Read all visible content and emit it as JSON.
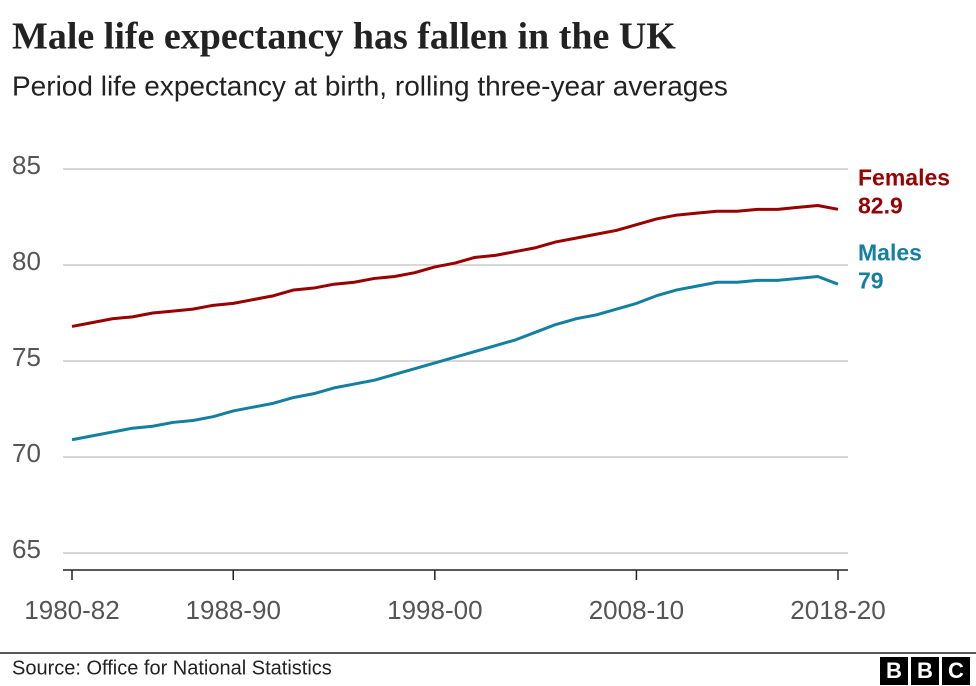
{
  "chart_data": {
    "type": "line",
    "title": "Male life expectancy has fallen in the UK",
    "subtitle": "Period life expectancy at birth, rolling three-year averages",
    "categories": [
      "1980-82",
      null,
      null,
      null,
      null,
      null,
      null,
      null,
      "1988-90",
      null,
      null,
      null,
      null,
      null,
      null,
      null,
      null,
      null,
      "1998-00",
      null,
      null,
      null,
      null,
      null,
      null,
      null,
      null,
      null,
      "2008-10",
      null,
      null,
      null,
      null,
      null,
      null,
      null,
      null,
      null,
      "2018-20"
    ],
    "series": [
      {
        "name": "Females",
        "color": "#990000",
        "values": [
          76.8,
          77.0,
          77.2,
          77.3,
          77.5,
          77.6,
          77.7,
          77.9,
          78.0,
          78.2,
          78.4,
          78.7,
          78.8,
          79.0,
          79.1,
          79.3,
          79.4,
          79.6,
          79.9,
          80.1,
          80.4,
          80.5,
          80.7,
          80.9,
          81.2,
          81.4,
          81.6,
          81.8,
          82.1,
          82.4,
          82.6,
          82.7,
          82.8,
          82.8,
          82.9,
          82.9,
          83.0,
          83.1,
          82.9
        ]
      },
      {
        "name": "Males",
        "color": "#1380a1",
        "values": [
          70.9,
          71.1,
          71.3,
          71.5,
          71.6,
          71.8,
          71.9,
          72.1,
          72.4,
          72.6,
          72.8,
          73.1,
          73.3,
          73.6,
          73.8,
          74.0,
          74.3,
          74.6,
          74.9,
          75.2,
          75.5,
          75.8,
          76.1,
          76.5,
          76.9,
          77.2,
          77.4,
          77.7,
          78.0,
          78.4,
          78.7,
          78.9,
          79.1,
          79.1,
          79.2,
          79.2,
          79.3,
          79.4,
          79
        ]
      }
    ],
    "ylim": [
      65,
      85
    ],
    "yticks": [
      65,
      70,
      75,
      80,
      85
    ],
    "grid": true,
    "source": "Source: Office for National Statistics",
    "logo": [
      "B",
      "B",
      "C"
    ]
  }
}
